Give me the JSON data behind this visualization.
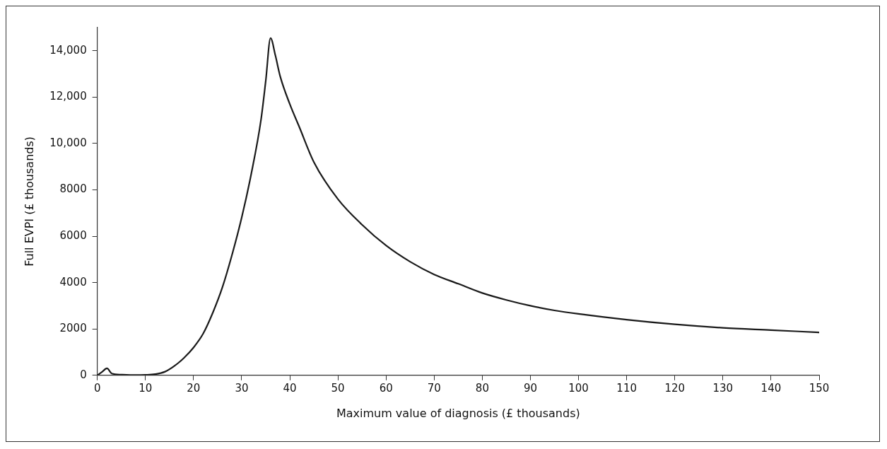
{
  "chart_data": {
    "type": "line",
    "xlabel": "Maximum value of diagnosis (£ thousands)",
    "ylabel": "Full EVPI (£ thousands)",
    "x": [
      0,
      1,
      2,
      3,
      5,
      8,
      10,
      12,
      14,
      16,
      18,
      20,
      22,
      24,
      26,
      28,
      30,
      32,
      34,
      35,
      36,
      37,
      38,
      40,
      42,
      45,
      50,
      55,
      60,
      65,
      70,
      75,
      80,
      85,
      90,
      95,
      100,
      110,
      120,
      130,
      140,
      150
    ],
    "series": [
      {
        "color": "#1a1a1a",
        "values": [
          0,
          150,
          300,
          80,
          30,
          10,
          20,
          50,
          150,
          400,
          750,
          1200,
          1800,
          2700,
          3800,
          5200,
          6800,
          8700,
          11000,
          12700,
          14550,
          13800,
          12900,
          11700,
          10700,
          9200,
          7600,
          6500,
          5600,
          4900,
          4350,
          3950,
          3550,
          3250,
          3000,
          2800,
          2650,
          2400,
          2200,
          2050,
          1950,
          1850
        ]
      }
    ],
    "xlim": [
      0,
      150
    ],
    "xticks": [
      0,
      10,
      20,
      30,
      40,
      50,
      60,
      70,
      80,
      90,
      100,
      110,
      120,
      130,
      140,
      150
    ],
    "ylim": [
      0,
      15000
    ],
    "yticks": [
      0,
      {
        "value": 2000,
        "label": "2000"
      },
      {
        "value": 4000,
        "label": "4000"
      },
      {
        "value": 6000,
        "label": "6000"
      },
      {
        "value": 8000,
        "label": "8000"
      },
      {
        "value": 10000,
        "label": "10,000"
      },
      {
        "value": 12000,
        "label": "12,000"
      },
      {
        "value": 14000,
        "label": "14,000"
      }
    ],
    "grid": false,
    "legend": false,
    "marker": "none",
    "line_style": "solid"
  }
}
